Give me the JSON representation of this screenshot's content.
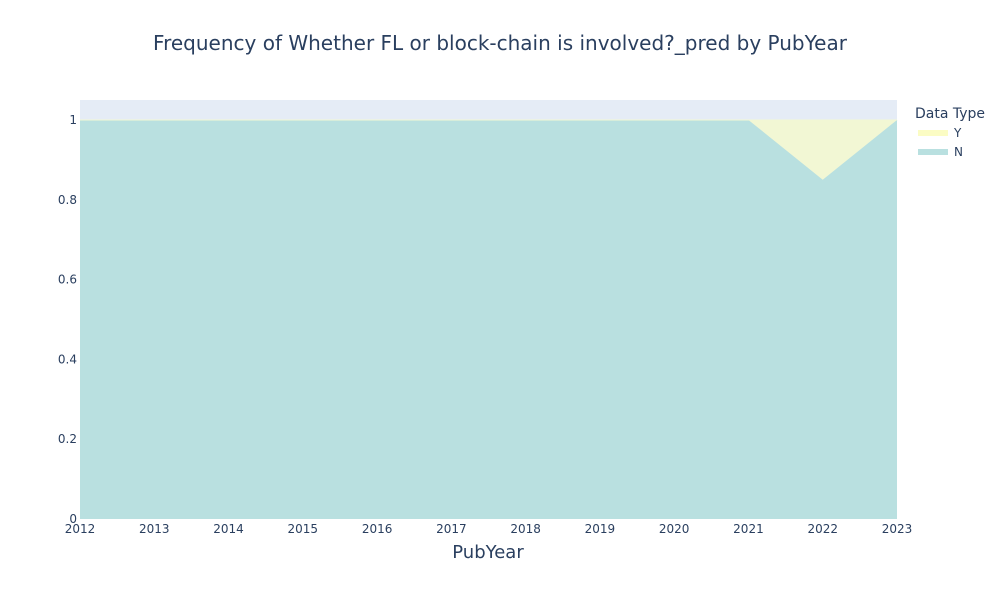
{
  "chart_data": {
    "type": "area",
    "title": "Frequency of Whether FL or block-chain is involved?_pred by PubYear",
    "xlabel": "PubYear",
    "ylabel": "",
    "x": [
      2012,
      2013,
      2014,
      2015,
      2016,
      2017,
      2018,
      2019,
      2020,
      2021,
      2022,
      2023
    ],
    "ylim": [
      0,
      1.05
    ],
    "xlim": [
      2012,
      2023
    ],
    "yticks": [
      0,
      0.2,
      0.4,
      0.6,
      0.8,
      1
    ],
    "ytick_labels": [
      "0",
      "0.2",
      "0.4",
      "0.6",
      "0.8",
      "1"
    ],
    "xtick_labels": [
      "2012",
      "2013",
      "2014",
      "2015",
      "2016",
      "2017",
      "2018",
      "2019",
      "2020",
      "2021",
      "2022",
      "2023"
    ],
    "stacked": true,
    "series": [
      {
        "name": "N",
        "values": [
          1,
          1,
          1,
          1,
          1,
          1,
          1,
          1,
          1,
          1,
          0.85,
          1
        ],
        "color": "#b9e0e0"
      },
      {
        "name": "Y",
        "values": [
          0,
          0,
          0,
          0,
          0,
          0,
          0,
          0,
          0,
          0,
          0.15,
          0
        ],
        "color": "#f2f7d4"
      }
    ],
    "legend": {
      "title": "Data Type",
      "placement": "top-right",
      "order": [
        "Y",
        "N"
      ],
      "swatch_colors": {
        "Y": "#fbfcc4",
        "N": "#b9e0e0"
      }
    },
    "plot_background": "#e5ecf6",
    "grid": true
  }
}
